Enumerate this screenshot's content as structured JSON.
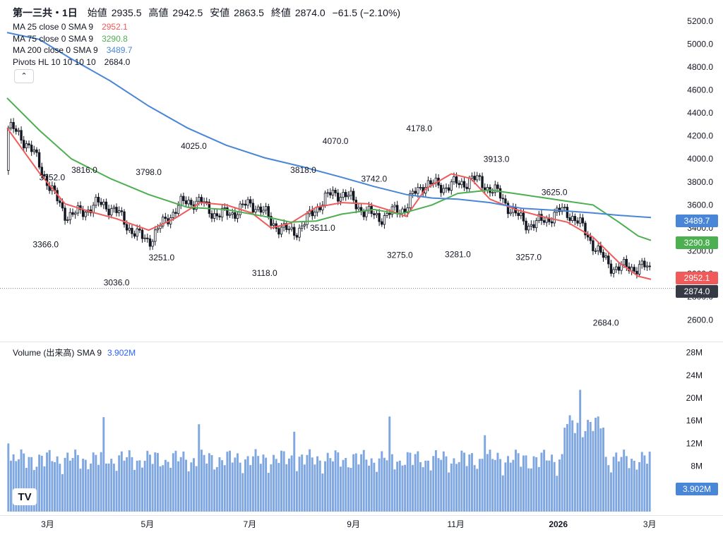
{
  "header": {
    "symbol": "第一三共・1日",
    "open_label": "始値",
    "open": "2935.5",
    "high_label": "高値",
    "high": "2942.5",
    "low_label": "安値",
    "low": "2863.5",
    "close_label": "終値",
    "close": "2874.0",
    "change": "−61.5 (−2.10%)"
  },
  "indicators": [
    {
      "label": "MA 25 close 0 SMA 9",
      "value": "2952.1",
      "color": "#f05a5a"
    },
    {
      "label": "MA 75 close 0 SMA 9",
      "value": "3290.8",
      "color": "#4caf50"
    },
    {
      "label": "MA 200 close 0 SMA 9",
      "value": "3489.7",
      "color": "#4a86d8"
    },
    {
      "label": "Pivots HL 10 10 10 10",
      "value": "2684.0",
      "color": "#131722"
    }
  ],
  "collapse_icon": "chevron-up-icon",
  "volume_legend": {
    "label": "Volume (出来高) SMA 9",
    "value": "3.902M"
  },
  "logo_text": "TV",
  "chart_data": {
    "type": "candlestick",
    "price_axis": {
      "ticks": [
        2600,
        2800,
        3000,
        3200,
        3400,
        3600,
        3800,
        4000,
        4200,
        4400,
        4600,
        4800,
        5000,
        5200
      ],
      "ylim": [
        2436,
        5260
      ]
    },
    "volume_axis": {
      "ticks": [
        "8M",
        "12M",
        "16M",
        "20M",
        "24M",
        "28M"
      ],
      "tick_values": [
        8,
        12,
        16,
        20,
        24,
        28
      ],
      "ylim": [
        0,
        29.2
      ]
    },
    "x_axis": {
      "labels": [
        "3月",
        "5月",
        "7月",
        "9月",
        "11月",
        "2026",
        "3月"
      ]
    },
    "last_price": 2874.0,
    "price_labels": [
      {
        "value": "3489.7",
        "color": "#4a86d8"
      },
      {
        "value": "3290.8",
        "color": "#4caf50"
      },
      {
        "value": "2952.1",
        "color": "#f05a5a"
      },
      {
        "value": "2874.0",
        "color": "#363a45"
      }
    ],
    "volume_label": {
      "value": "3.902M",
      "color": "#4a86d8"
    },
    "pivots": [
      {
        "value": 3752.0,
        "type": "high"
      },
      {
        "value": 3816.0,
        "type": "high"
      },
      {
        "value": 3366.0,
        "type": "low"
      },
      {
        "value": 3798.0,
        "type": "high"
      },
      {
        "value": 3036.0,
        "type": "low"
      },
      {
        "value": 4025.0,
        "type": "high"
      },
      {
        "value": 3251.0,
        "type": "low"
      },
      {
        "value": 3118.0,
        "type": "low"
      },
      {
        "value": 3818.0,
        "type": "high"
      },
      {
        "value": 4070.0,
        "type": "high"
      },
      {
        "value": 3511.0,
        "type": "low"
      },
      {
        "value": 3742.0,
        "type": "high"
      },
      {
        "value": 3275.0,
        "type": "low"
      },
      {
        "value": 4178.0,
        "type": "high"
      },
      {
        "value": 3281.0,
        "type": "low"
      },
      {
        "value": 3913.0,
        "type": "high"
      },
      {
        "value": 3257.0,
        "type": "low"
      },
      {
        "value": 3625.0,
        "type": "high"
      },
      {
        "value": 2684.0,
        "type": "low"
      }
    ],
    "series": [
      {
        "name": "MA 25",
        "color": "#f05a5a",
        "values": [
          [
            0,
            4270
          ],
          [
            0.05,
            3880
          ],
          [
            0.09,
            3610
          ],
          [
            0.13,
            3540
          ],
          [
            0.17,
            3480
          ],
          [
            0.22,
            3380
          ],
          [
            0.26,
            3480
          ],
          [
            0.3,
            3620
          ],
          [
            0.34,
            3600
          ],
          [
            0.38,
            3530
          ],
          [
            0.41,
            3400
          ],
          [
            0.44,
            3440
          ],
          [
            0.48,
            3580
          ],
          [
            0.52,
            3620
          ],
          [
            0.56,
            3610
          ],
          [
            0.59,
            3560
          ],
          [
            0.62,
            3500
          ],
          [
            0.65,
            3740
          ],
          [
            0.69,
            3870
          ],
          [
            0.72,
            3830
          ],
          [
            0.75,
            3650
          ],
          [
            0.79,
            3560
          ],
          [
            0.83,
            3500
          ],
          [
            0.87,
            3450
          ],
          [
            0.91,
            3320
          ],
          [
            0.95,
            3100
          ],
          [
            0.98,
            2980
          ],
          [
            1,
            2952
          ]
        ]
      },
      {
        "name": "MA 75",
        "color": "#4caf50",
        "values": [
          [
            0,
            4530
          ],
          [
            0.05,
            4250
          ],
          [
            0.1,
            4000
          ],
          [
            0.16,
            3830
          ],
          [
            0.22,
            3690
          ],
          [
            0.28,
            3580
          ],
          [
            0.34,
            3560
          ],
          [
            0.4,
            3500
          ],
          [
            0.44,
            3450
          ],
          [
            0.48,
            3460
          ],
          [
            0.52,
            3520
          ],
          [
            0.57,
            3560
          ],
          [
            0.61,
            3520
          ],
          [
            0.66,
            3600
          ],
          [
            0.7,
            3700
          ],
          [
            0.75,
            3730
          ],
          [
            0.8,
            3690
          ],
          [
            0.86,
            3640
          ],
          [
            0.91,
            3600
          ],
          [
            0.95,
            3450
          ],
          [
            0.98,
            3330
          ],
          [
            1,
            3291
          ]
        ]
      },
      {
        "name": "MA 200",
        "color": "#4a86d8",
        "values": [
          [
            0,
            5100
          ],
          [
            0.05,
            5040
          ],
          [
            0.1,
            4870
          ],
          [
            0.16,
            4680
          ],
          [
            0.22,
            4460
          ],
          [
            0.28,
            4270
          ],
          [
            0.34,
            4120
          ],
          [
            0.4,
            4010
          ],
          [
            0.46,
            3930
          ],
          [
            0.52,
            3840
          ],
          [
            0.57,
            3760
          ],
          [
            0.62,
            3690
          ],
          [
            0.66,
            3660
          ],
          [
            0.7,
            3650
          ],
          [
            0.75,
            3620
          ],
          [
            0.8,
            3570
          ],
          [
            0.86,
            3550
          ],
          [
            0.91,
            3530
          ],
          [
            0.95,
            3510
          ],
          [
            1,
            3490
          ]
        ]
      }
    ]
  }
}
